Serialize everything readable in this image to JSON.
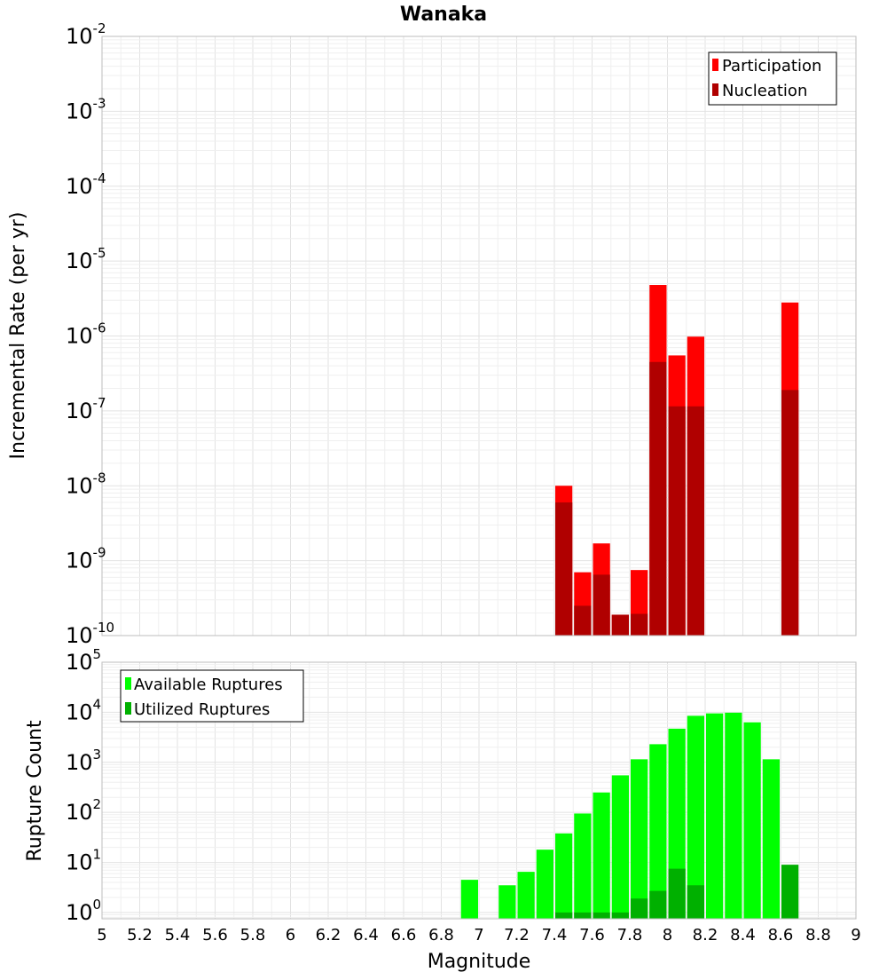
{
  "chart_data": [
    {
      "type": "bar",
      "title": "Wanaka",
      "ylabel": "Incremental Rate (per yr)",
      "yscale": "log",
      "ylim": [
        1e-10,
        0.01
      ],
      "xlim": [
        5,
        9
      ],
      "y_ticks": [
        {
          "base": "10",
          "exp": "-10"
        },
        {
          "base": "10",
          "exp": "-9"
        },
        {
          "base": "10",
          "exp": "-8"
        },
        {
          "base": "10",
          "exp": "-7"
        },
        {
          "base": "10",
          "exp": "-6"
        },
        {
          "base": "10",
          "exp": "-5"
        },
        {
          "base": "10",
          "exp": "-4"
        },
        {
          "base": "10",
          "exp": "-3"
        },
        {
          "base": "10",
          "exp": "-2"
        }
      ],
      "grid": true,
      "legend_position": "top-right",
      "series": [
        {
          "name": "Participation",
          "color": "#ff0000",
          "x": [
            7.45,
            7.55,
            7.65,
            7.75,
            7.85,
            7.95,
            8.05,
            8.15,
            8.65
          ],
          "values": [
            1e-08,
            7e-10,
            1.7e-09,
            1.9e-10,
            7.5e-10,
            4.8e-06,
            5.5e-07,
            9.8e-07,
            2.8e-06
          ]
        },
        {
          "name": "Nucleation",
          "color": "#b00000",
          "x": [
            7.45,
            7.55,
            7.65,
            7.75,
            7.85,
            7.95,
            8.05,
            8.15,
            8.65
          ],
          "values": [
            6e-09,
            2.5e-10,
            6.5e-10,
            1.9e-10,
            1.95e-10,
            4.5e-07,
            1.15e-07,
            1.15e-07,
            1.9e-07
          ]
        }
      ]
    },
    {
      "type": "bar",
      "ylabel": "Rupture Count",
      "xlabel": "Magnitude",
      "yscale": "log",
      "ylim": [
        0.75,
        100000.0
      ],
      "xlim": [
        5,
        9
      ],
      "x_ticks": [
        "5",
        "5.2",
        "5.4",
        "5.6",
        "5.8",
        "6",
        "6.2",
        "6.4",
        "6.6",
        "6.8",
        "7",
        "7.2",
        "7.4",
        "7.6",
        "7.8",
        "8",
        "8.2",
        "8.4",
        "8.6",
        "8.8",
        "9"
      ],
      "y_ticks": [
        {
          "base": "10",
          "exp": "0"
        },
        {
          "base": "10",
          "exp": "1"
        },
        {
          "base": "10",
          "exp": "2"
        },
        {
          "base": "10",
          "exp": "3"
        },
        {
          "base": "10",
          "exp": "4"
        },
        {
          "base": "10",
          "exp": "5"
        }
      ],
      "grid": true,
      "legend_position": "top-left",
      "series": [
        {
          "name": "Available Ruptures",
          "color": "#00ff00",
          "x": [
            6.95,
            7.15,
            7.25,
            7.35,
            7.45,
            7.55,
            7.65,
            7.75,
            7.85,
            7.95,
            8.05,
            8.15,
            8.25,
            8.35,
            8.45,
            8.55
          ],
          "values": [
            4.5,
            3.5,
            6.5,
            18,
            38,
            95,
            250,
            550,
            1150,
            2300,
            4700,
            8500,
            9500,
            9800,
            6300,
            1150
          ]
        },
        {
          "name": "Utilized Ruptures",
          "color": "#00b000",
          "x": [
            7.45,
            7.55,
            7.65,
            7.75,
            7.85,
            7.95,
            8.05,
            8.15,
            8.65
          ],
          "values": [
            1,
            1,
            1,
            1,
            1.9,
            2.7,
            7.5,
            3.5,
            9
          ]
        }
      ]
    }
  ]
}
